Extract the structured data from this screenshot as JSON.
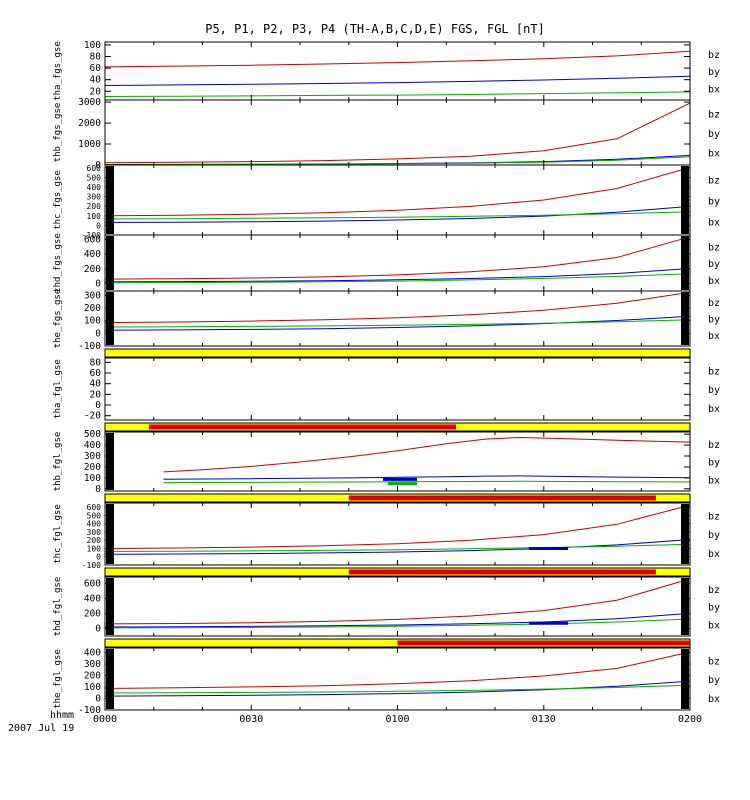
{
  "title": "P5, P1, P2, P3, P4 (TH-A,B,C,D,E) FGS, FGL [nT]",
  "colors": {
    "bz": "#cc0000",
    "by": "#0000cc",
    "bx": "#00b300",
    "flag_yellow": "#ffff00",
    "flag_red": "#dd0000"
  },
  "legend_labels": [
    "bz",
    "by",
    "bx"
  ],
  "time_axis": {
    "label": "hhmm",
    "date": "2007 Jul 19",
    "ticks": [
      "0000",
      "0030",
      "0100",
      "0130",
      "0200"
    ],
    "tick_minutes": [
      0,
      30,
      60,
      90,
      120
    ],
    "range_minutes": [
      0,
      120
    ]
  },
  "chart_data": [
    {
      "type": "line",
      "name": "tha_fgs_gse",
      "ylim": [
        5,
        105
      ],
      "yticks": [
        100,
        80,
        60,
        40,
        20
      ],
      "edge_bars": {
        "left": false,
        "right": false
      },
      "series": [
        {
          "name": "bz",
          "x": [
            0,
            15,
            30,
            45,
            60,
            75,
            90,
            105,
            120
          ],
          "y": [
            62,
            63.5,
            65,
            67,
            69.5,
            72.5,
            76,
            81,
            89
          ]
        },
        {
          "name": "by",
          "x": [
            0,
            15,
            30,
            45,
            60,
            75,
            90,
            105,
            120
          ],
          "y": [
            30,
            31,
            32,
            33.5,
            35,
            37,
            39.5,
            42.5,
            46
          ]
        },
        {
          "name": "bx",
          "x": [
            0,
            15,
            30,
            45,
            60,
            75,
            90,
            105,
            120
          ],
          "y": [
            11,
            11.5,
            12,
            13,
            13.5,
            14.5,
            16,
            17.5,
            19
          ]
        }
      ]
    },
    {
      "type": "line",
      "name": "thb_fgs_gse",
      "ylim": [
        0,
        3100
      ],
      "yticks": [
        3000,
        2000,
        1000,
        0
      ],
      "edge_bars": {
        "left": false,
        "right": false
      },
      "series": [
        {
          "name": "bz",
          "x": [
            0,
            15,
            30,
            45,
            60,
            75,
            90,
            105,
            120
          ],
          "y": [
            110,
            130,
            160,
            210,
            290,
            420,
            680,
            1250,
            2950
          ]
        },
        {
          "name": "by",
          "x": [
            0,
            15,
            30,
            45,
            60,
            75,
            90,
            105,
            120
          ],
          "y": [
            25,
            30,
            38,
            50,
            70,
            100,
            160,
            270,
            460
          ]
        },
        {
          "name": "bx",
          "x": [
            0,
            15,
            30,
            45,
            60,
            75,
            90,
            105,
            120
          ],
          "y": [
            18,
            22,
            28,
            38,
            55,
            85,
            135,
            230,
            390
          ]
        }
      ]
    },
    {
      "type": "line",
      "name": "thc_fgs_gse",
      "ylim": [
        -100,
        630
      ],
      "yticks": [
        600,
        500,
        400,
        300,
        200,
        100,
        0,
        -100
      ],
      "edge_bars": {
        "left": true,
        "right": true
      },
      "series": [
        {
          "name": "bz",
          "x": [
            0,
            15,
            30,
            45,
            60,
            75,
            90,
            105,
            120
          ],
          "y": [
            100,
            106,
            116,
            132,
            158,
            198,
            265,
            385,
            605
          ]
        },
        {
          "name": "by",
          "x": [
            0,
            15,
            30,
            45,
            60,
            75,
            90,
            105,
            120
          ],
          "y": [
            30,
            33,
            38,
            45,
            56,
            72,
            97,
            138,
            198
          ]
        },
        {
          "name": "bx",
          "x": [
            0,
            15,
            30,
            45,
            60,
            75,
            90,
            105,
            120
          ],
          "y": [
            68,
            70,
            74,
            79,
            86,
            95,
            107,
            122,
            142
          ]
        }
      ]
    },
    {
      "type": "line",
      "name": "thd_fgs_gse",
      "ylim": [
        -100,
        660
      ],
      "yticks": [
        600,
        400,
        200,
        0
      ],
      "edge_bars": {
        "left": true,
        "right": true
      },
      "series": [
        {
          "name": "bz",
          "x": [
            0,
            15,
            30,
            45,
            60,
            75,
            90,
            105,
            120
          ],
          "y": [
            62,
            67,
            76,
            92,
            118,
            160,
            228,
            355,
            635
          ]
        },
        {
          "name": "by",
          "x": [
            0,
            15,
            30,
            45,
            60,
            75,
            90,
            105,
            120
          ],
          "y": [
            24,
            27,
            32,
            40,
            52,
            70,
            96,
            138,
            205
          ]
        },
        {
          "name": "bx",
          "x": [
            0,
            15,
            30,
            45,
            60,
            75,
            90,
            105,
            120
          ],
          "y": [
            12,
            14,
            18,
            25,
            35,
            50,
            70,
            98,
            135
          ]
        }
      ]
    },
    {
      "type": "line",
      "name": "the_fgs_gse",
      "ylim": [
        -100,
        335
      ],
      "yticks": [
        300,
        200,
        100,
        0,
        -100
      ],
      "edge_bars": {
        "left": true,
        "right": true
      },
      "series": [
        {
          "name": "bz",
          "x": [
            0,
            15,
            30,
            45,
            60,
            75,
            90,
            105,
            120
          ],
          "y": [
            85,
            90,
            97,
            108,
            123,
            147,
            182,
            238,
            325
          ]
        },
        {
          "name": "by",
          "x": [
            0,
            15,
            30,
            45,
            60,
            75,
            90,
            105,
            120
          ],
          "y": [
            24,
            27,
            31,
            37,
            46,
            59,
            77,
            102,
            135
          ]
        },
        {
          "name": "bx",
          "x": [
            0,
            15,
            30,
            45,
            60,
            75,
            90,
            105,
            120
          ],
          "y": [
            50,
            52,
            55,
            59,
            64,
            71,
            80,
            92,
            107
          ]
        }
      ]
    },
    {
      "type": "line",
      "name": "tha_fgl_gse",
      "ylim": [
        -28,
        88
      ],
      "yticks": [
        80,
        60,
        40,
        20,
        0,
        -20
      ],
      "edge_bars": {
        "left": false,
        "right": false
      },
      "flag_above": {
        "red_segments_minutes": []
      },
      "series": []
    },
    {
      "type": "line",
      "name": "thb_fgl_gse",
      "ylim": [
        -20,
        520
      ],
      "yticks": [
        500,
        400,
        300,
        200,
        100,
        0
      ],
      "edge_bars": {
        "left": true,
        "right": false
      },
      "flag_above": {
        "red_segments_minutes": [
          [
            9,
            72
          ]
        ]
      },
      "series": [
        {
          "name": "bz",
          "x": [
            12,
            20,
            30,
            40,
            50,
            60,
            70,
            78,
            85,
            95,
            105,
            120
          ],
          "y": [
            155,
            175,
            205,
            245,
            292,
            348,
            412,
            455,
            470,
            458,
            444,
            428
          ]
        },
        {
          "name": "by",
          "x": [
            12,
            20,
            30,
            40,
            50,
            60,
            70,
            78,
            85,
            95,
            105,
            120
          ],
          "y": [
            88,
            90,
            93,
            96,
            100,
            105,
            111,
            116,
            118,
            113,
            107,
            101
          ]
        },
        {
          "name": "bx",
          "x": [
            12,
            20,
            30,
            40,
            50,
            60,
            70,
            78,
            85,
            95,
            105,
            120
          ],
          "y": [
            57,
            58,
            59,
            61,
            62,
            64,
            66,
            68,
            69,
            67,
            65,
            63
          ]
        }
      ],
      "markers": [
        {
          "series": "by",
          "x": [
            57,
            64
          ],
          "y": 86
        },
        {
          "series": "bx",
          "x": [
            58,
            64
          ],
          "y": 48
        }
      ]
    },
    {
      "type": "line",
      "name": "thc_fgl_gse",
      "ylim": [
        -100,
        650
      ],
      "yticks": [
        600,
        500,
        400,
        300,
        200,
        100,
        0,
        -100
      ],
      "edge_bars": {
        "left": true,
        "right": true
      },
      "flag_above": {
        "red_segments_minutes": [
          [
            50,
            113
          ]
        ]
      },
      "series": [
        {
          "name": "bz",
          "x": [
            0,
            15,
            30,
            45,
            60,
            75,
            90,
            105,
            120
          ],
          "y": [
            100,
            106,
            116,
            132,
            158,
            200,
            268,
            392,
            625
          ]
        },
        {
          "name": "by",
          "x": [
            0,
            15,
            30,
            45,
            60,
            75,
            90,
            105,
            120
          ],
          "y": [
            30,
            33,
            38,
            46,
            57,
            74,
            100,
            143,
            208
          ]
        },
        {
          "name": "bx",
          "x": [
            0,
            15,
            30,
            45,
            60,
            75,
            90,
            105,
            120
          ],
          "y": [
            64,
            67,
            71,
            77,
            85,
            96,
            110,
            128,
            152
          ]
        }
      ],
      "markers": [
        {
          "series": "by",
          "x": [
            87,
            95
          ],
          "y": 100
        }
      ]
    },
    {
      "type": "line",
      "name": "thd_fgl_gse",
      "ylim": [
        -100,
        690
      ],
      "yticks": [
        600,
        400,
        200,
        0
      ],
      "edge_bars": {
        "left": true,
        "right": true
      },
      "flag_above": {
        "red_segments_minutes": [
          [
            50,
            113
          ]
        ]
      },
      "series": [
        {
          "name": "bz",
          "x": [
            0,
            15,
            30,
            45,
            60,
            75,
            90,
            105,
            120
          ],
          "y": [
            62,
            68,
            78,
            95,
            122,
            168,
            240,
            380,
            665
          ]
        },
        {
          "name": "by",
          "x": [
            0,
            15,
            30,
            45,
            60,
            75,
            90,
            105,
            120
          ],
          "y": [
            20,
            23,
            28,
            36,
            47,
            63,
            88,
            132,
            202
          ]
        },
        {
          "name": "bx",
          "x": [
            0,
            15,
            30,
            45,
            60,
            75,
            90,
            105,
            120
          ],
          "y": [
            9,
            11,
            15,
            21,
            30,
            43,
            61,
            88,
            128
          ]
        }
      ],
      "markers": [
        {
          "series": "by",
          "x": [
            87,
            95
          ],
          "y": 70
        }
      ]
    },
    {
      "type": "line",
      "name": "the_fgl_gse",
      "ylim": [
        -100,
        440
      ],
      "yticks": [
        400,
        300,
        200,
        100,
        0,
        -100
      ],
      "edge_bars": {
        "left": true,
        "right": true
      },
      "flag_above": {
        "red_segments_minutes": [
          [
            60,
            120
          ]
        ]
      },
      "series": [
        {
          "name": "bz",
          "x": [
            0,
            15,
            30,
            45,
            60,
            75,
            90,
            105,
            120
          ],
          "y": [
            88,
            93,
            101,
            112,
            129,
            155,
            196,
            262,
            405
          ]
        },
        {
          "name": "by",
          "x": [
            0,
            15,
            30,
            45,
            60,
            75,
            90,
            105,
            120
          ],
          "y": [
            21,
            24,
            28,
            34,
            43,
            56,
            76,
            106,
            152
          ]
        },
        {
          "name": "bx",
          "x": [
            0,
            15,
            30,
            45,
            60,
            75,
            90,
            105,
            120
          ],
          "y": [
            48,
            50,
            53,
            57,
            63,
            71,
            82,
            96,
            116
          ]
        }
      ]
    }
  ]
}
